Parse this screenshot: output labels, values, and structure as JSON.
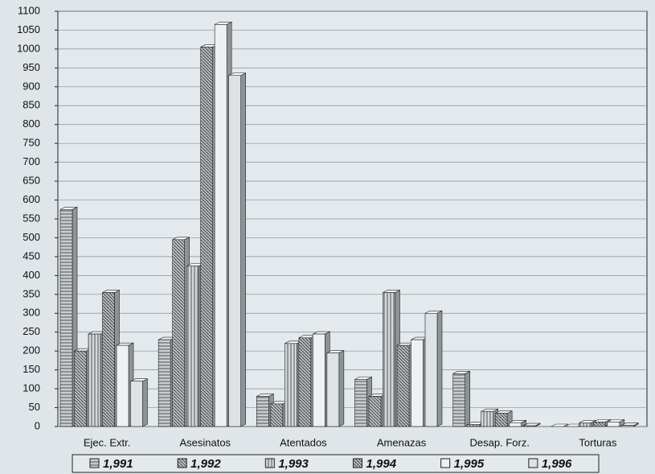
{
  "chart_data": {
    "type": "bar",
    "categories": [
      "Ejec. Extr.",
      "Asesinatos",
      "Atentados",
      "Amenazas",
      "Desap. Forz.",
      "Torturas"
    ],
    "series": [
      {
        "name": "1,991",
        "color": "#c8cdd0",
        "pattern": "horizontal",
        "values": [
          575,
          230,
          80,
          125,
          140,
          0
        ]
      },
      {
        "name": "1,992",
        "color": "#b9bec2",
        "pattern": "diagonal",
        "values": [
          200,
          495,
          60,
          80,
          5,
          0
        ]
      },
      {
        "name": "1,993",
        "color": "#d3d8db",
        "pattern": "vertical",
        "values": [
          245,
          425,
          220,
          355,
          40,
          10
        ]
      },
      {
        "name": "1,994",
        "color": "#b3b9bd",
        "pattern": "diagonal",
        "values": [
          355,
          1005,
          235,
          215,
          35,
          12
        ]
      },
      {
        "name": "1,995",
        "color": "#eef1f2",
        "pattern": "none",
        "values": [
          215,
          1065,
          245,
          230,
          10,
          12
        ]
      },
      {
        "name": "1,996",
        "color": "#dce2e5",
        "pattern": "none",
        "values": [
          120,
          930,
          195,
          300,
          2,
          3
        ]
      }
    ],
    "ylim": [
      0,
      1100
    ],
    "yticks": [
      0,
      50,
      100,
      150,
      200,
      250,
      300,
      350,
      400,
      450,
      500,
      550,
      600,
      650,
      700,
      750,
      800,
      850,
      900,
      950,
      1000,
      1050,
      1100
    ],
    "grid": true,
    "legend": "bottom"
  }
}
